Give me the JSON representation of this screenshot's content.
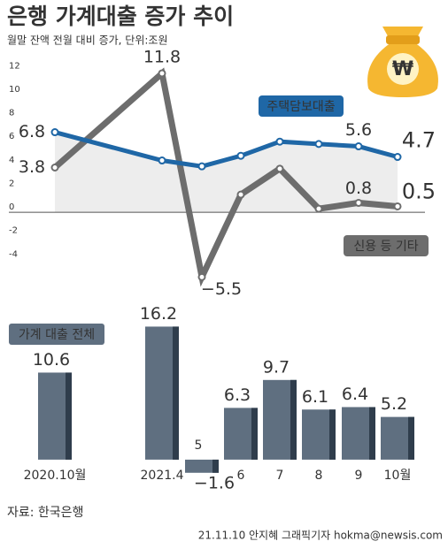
{
  "header": {
    "title": "은행 가계대출 증가 추이",
    "subtitle": "월말 잔액 전월 대비 증가, 단위:조원"
  },
  "chart_data": [
    {
      "type": "line",
      "series": [
        {
          "name": "주택담보대출",
          "color": "#1f67a6",
          "values": [
            6.8,
            4.4,
            3.9,
            4.8,
            6.0,
            5.8,
            5.6,
            4.7
          ],
          "value_labels": [
            "6.8",
            null,
            null,
            null,
            null,
            null,
            "5.6",
            "4.7"
          ]
        },
        {
          "name": "신용 등 기타",
          "color": "#6d6d6d",
          "values": [
            3.8,
            11.8,
            -5.5,
            1.5,
            3.7,
            0.3,
            0.8,
            0.5
          ],
          "value_labels": [
            "3.8",
            "11.8",
            "−5.5",
            null,
            null,
            null,
            "0.8",
            "0.5"
          ]
        }
      ],
      "ylim": [
        -6,
        13
      ],
      "yticks": [
        -4,
        -2,
        0,
        2,
        4,
        6,
        8,
        10,
        12
      ]
    },
    {
      "type": "bar",
      "title": "가계 대출 전체",
      "categories": [
        "2020.10월",
        "2021.4",
        "5",
        "6",
        "7",
        "8",
        "9",
        "10월"
      ],
      "values": [
        10.6,
        16.2,
        -1.6,
        6.3,
        9.7,
        6.1,
        6.4,
        5.2
      ],
      "value_labels": [
        "10.6",
        "16.2",
        "−1.6",
        "6.3",
        "9.7",
        "6.1",
        "6.4",
        "5.2"
      ],
      "color": "#5f6f80",
      "ylim": [
        -2,
        17
      ]
    }
  ],
  "footer": {
    "source": "자료: 한국은행",
    "credit": "21.11.10 안지혜 그래픽기자 hokma@newsis.com"
  }
}
